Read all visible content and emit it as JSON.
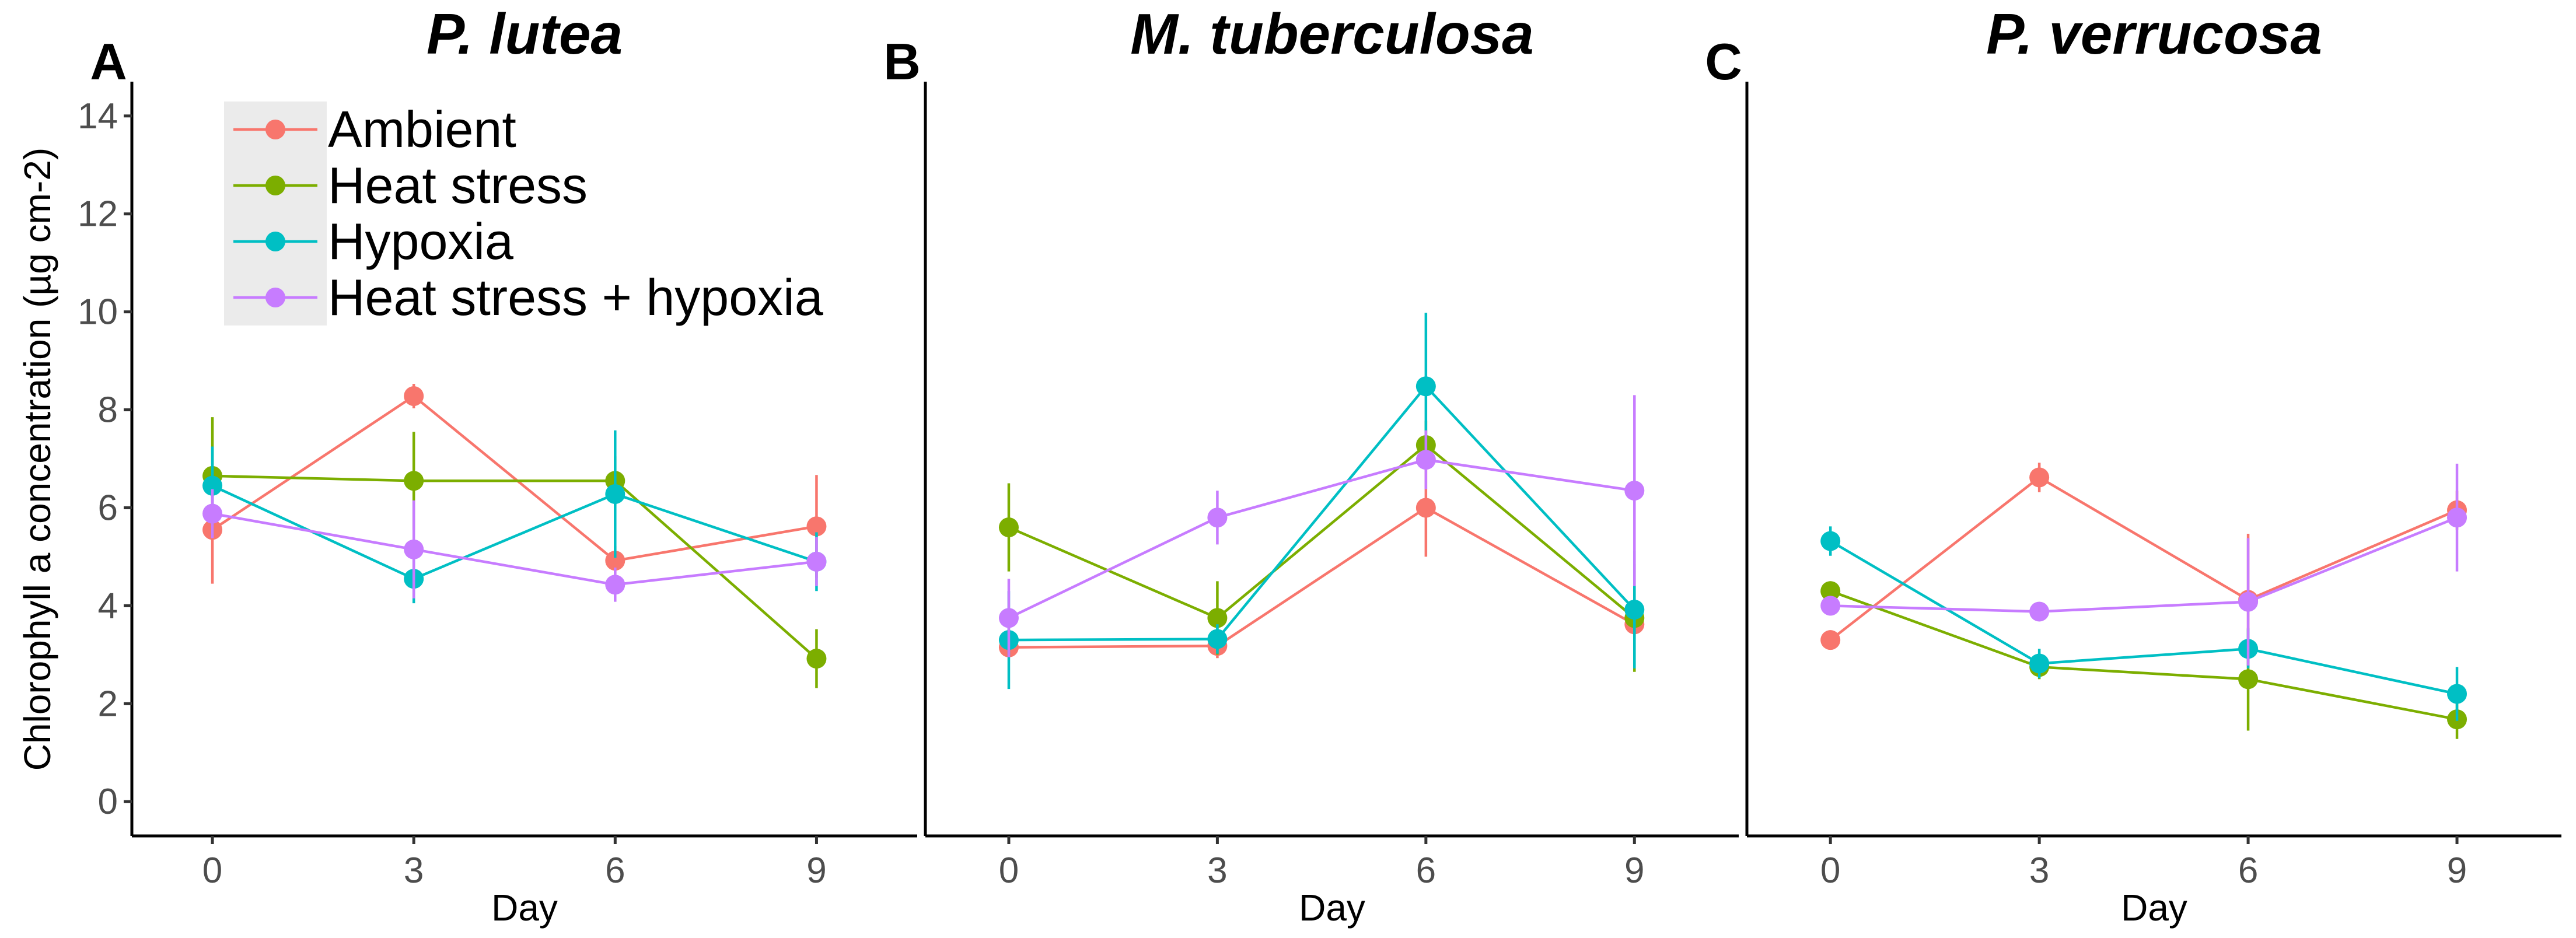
{
  "chart_data": [
    {
      "type": "line",
      "panel_letter": "A",
      "title": "P. lutea",
      "xlabel": "Day",
      "ylabel": "Chlorophyll a concentration (µg cm-2)",
      "x": [
        0,
        3,
        6,
        9
      ],
      "xticks": [
        "0",
        "3",
        "6",
        "9"
      ],
      "yticks": [
        "0",
        "2",
        "4",
        "6",
        "8",
        "10",
        "12",
        "14"
      ],
      "ylim": [
        -0.7,
        14.7
      ],
      "xlim": [
        -1.2,
        10.5
      ],
      "series": [
        {
          "name": "Ambient",
          "color": "#F8766D",
          "values": [
            5.55,
            8.28,
            4.92,
            5.62
          ],
          "err": [
            1.1,
            0.25,
            0.3,
            1.05
          ]
        },
        {
          "name": "Heat stress",
          "color": "#7CAE00",
          "values": [
            6.65,
            6.55,
            6.55,
            2.92
          ],
          "err": [
            1.2,
            1.0,
            0.5,
            0.6
          ]
        },
        {
          "name": "Hypoxia",
          "color": "#00BFC4",
          "values": [
            6.45,
            4.55,
            6.28,
            4.9
          ],
          "err": [
            0.8,
            0.5,
            1.3,
            0.6
          ]
        },
        {
          "name": "Heat stress + hypoxia",
          "color": "#C77CFF",
          "values": [
            5.88,
            5.15,
            4.43,
            4.9
          ],
          "err": [
            0.5,
            1.0,
            0.35,
            0.5
          ]
        }
      ]
    },
    {
      "type": "line",
      "panel_letter": "B",
      "title": "M. tuberculosa",
      "xlabel": "Day",
      "ylabel": "",
      "x": [
        0,
        3,
        6,
        9
      ],
      "xticks": [
        "0",
        "3",
        "6",
        "9"
      ],
      "yticks": [],
      "ylim": [
        -0.7,
        14.7
      ],
      "xlim": [
        -1.2,
        10.5
      ],
      "series": [
        {
          "name": "Ambient",
          "color": "#F8766D",
          "values": [
            3.15,
            3.18,
            6.0,
            3.62
          ],
          "err": [
            0.2,
            0.25,
            1.0,
            0.3
          ]
        },
        {
          "name": "Heat stress",
          "color": "#7CAE00",
          "values": [
            5.6,
            3.75,
            7.28,
            3.75
          ],
          "err": [
            0.9,
            0.75,
            0.5,
            1.1
          ]
        },
        {
          "name": "Hypoxia",
          "color": "#00BFC4",
          "values": [
            3.3,
            3.32,
            8.48,
            3.92
          ],
          "err": [
            1.0,
            0.3,
            1.5,
            1.2
          ]
        },
        {
          "name": "Heat stress + hypoxia",
          "color": "#C77CFF",
          "values": [
            3.75,
            5.8,
            6.98,
            6.35
          ],
          "err": [
            0.8,
            0.55,
            0.6,
            1.95
          ]
        }
      ]
    },
    {
      "type": "line",
      "panel_letter": "C",
      "title": "P. verrucosa",
      "xlabel": "Day",
      "ylabel": "",
      "x": [
        0,
        3,
        6,
        9
      ],
      "xticks": [
        "0",
        "3",
        "6",
        "9"
      ],
      "yticks": [],
      "ylim": [
        -0.7,
        14.7
      ],
      "xlim": [
        -1.2,
        10.5
      ],
      "series": [
        {
          "name": "Ambient",
          "color": "#F8766D",
          "values": [
            3.3,
            6.62,
            4.12,
            5.95
          ],
          "err": [
            0.2,
            0.3,
            1.35,
            0.4
          ]
        },
        {
          "name": "Heat stress",
          "color": "#7CAE00",
          "values": [
            4.3,
            2.75,
            2.5,
            1.68
          ],
          "err": [
            0.2,
            0.25,
            1.05,
            0.4
          ]
        },
        {
          "name": "Hypoxia",
          "color": "#00BFC4",
          "values": [
            5.32,
            2.82,
            3.12,
            2.2
          ],
          "err": [
            0.3,
            0.3,
            0.4,
            0.55
          ]
        },
        {
          "name": "Heat stress + hypoxia",
          "color": "#C77CFF",
          "values": [
            4.0,
            3.88,
            4.08,
            5.8
          ],
          "err": [
            0.2,
            0.15,
            1.3,
            1.1
          ]
        }
      ]
    }
  ],
  "legend": {
    "position": "top-left of panel A",
    "items": [
      {
        "label": "Ambient",
        "color": "#F8766D"
      },
      {
        "label": "Heat stress",
        "color": "#7CAE00"
      },
      {
        "label": "Hypoxia",
        "color": "#00BFC4"
      },
      {
        "label": "Heat stress + hypoxia",
        "color": "#C77CFF"
      }
    ]
  }
}
